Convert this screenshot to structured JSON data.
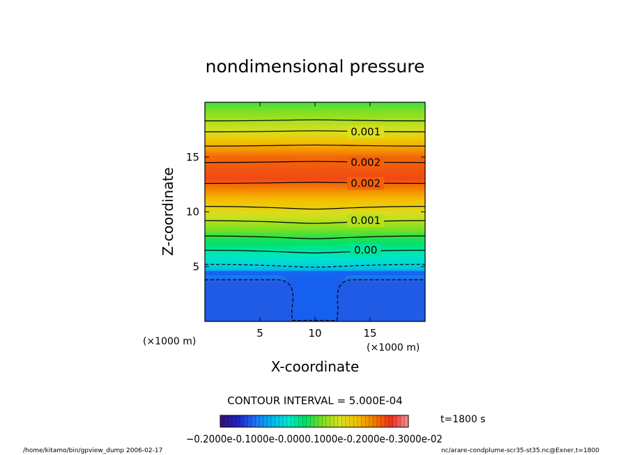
{
  "chart_data": {
    "type": "heatmap",
    "title": "nondimensional pressure",
    "xlabel": "X-coordinate",
    "ylabel": "Z-coordinate",
    "x_unit": "(×1000 m)",
    "y_unit": "(×1000 m)",
    "xlim": [
      0,
      20
    ],
    "ylim": [
      0,
      20
    ],
    "x_ticks": [
      5,
      10,
      15
    ],
    "y_ticks": [
      5,
      10,
      15
    ],
    "contour_interval_text": "CONTOUR INTERVAL = 5.000E-04",
    "time_text": "t=1800 s",
    "colorbar_text": "−0.2000e-0.1000e-0.0000.1000e-0.2000e-0.3000e-02",
    "colorbar_range": [
      -0.002,
      0.003
    ],
    "colorbar_colors": [
      "#3a1070",
      "#2020c0",
      "#1f6df0",
      "#00b4f0",
      "#00e8c8",
      "#00e060",
      "#80e020",
      "#d8e020",
      "#f4c000",
      "#f47a00",
      "#f03020",
      "#f29090"
    ],
    "field_stops": [
      {
        "z": 0,
        "value": -0.0012
      },
      {
        "z": 3.8,
        "value": -0.0012
      },
      {
        "z": 5.0,
        "value": -0.0004
      },
      {
        "z": 6.5,
        "value": 0.0
      },
      {
        "z": 9.2,
        "value": 0.001
      },
      {
        "z": 11.5,
        "value": 0.0018
      },
      {
        "z": 13.0,
        "value": 0.0024
      },
      {
        "z": 15.0,
        "value": 0.0022
      },
      {
        "z": 17.3,
        "value": 0.0012
      },
      {
        "z": 20,
        "value": 0.0005
      }
    ],
    "contours": [
      {
        "value": -0.0005,
        "z": 3.9,
        "dashed": true,
        "label": ""
      },
      {
        "value": 0.0,
        "z": 5.2,
        "dashed": true,
        "label": ""
      },
      {
        "value": 0.0,
        "z": 6.5,
        "dashed": false,
        "label": "0.00"
      },
      {
        "value": 0.0005,
        "z": 7.8,
        "dashed": false,
        "label": ""
      },
      {
        "value": 0.001,
        "z": 9.2,
        "dashed": false,
        "label": "0.001"
      },
      {
        "value": 0.0015,
        "z": 10.5,
        "dashed": false,
        "label": ""
      },
      {
        "value": 0.002,
        "z": 12.6,
        "dashed": false,
        "label": "0.002"
      },
      {
        "value": 0.002,
        "z": 14.5,
        "dashed": false,
        "label": "0.002"
      },
      {
        "value": 0.0015,
        "z": 16.0,
        "dashed": false,
        "label": ""
      },
      {
        "value": 0.001,
        "z": 17.3,
        "dashed": false,
        "label": "0.001"
      },
      {
        "value": 0.0005,
        "z": 18.3,
        "dashed": false,
        "label": ""
      }
    ]
  },
  "footer": {
    "left": "/home/kitamo/bin/gpview_dump  2006-02-17",
    "right": "nc/arare-condplume-scr35-st35.nc@Exner,t=1800"
  }
}
